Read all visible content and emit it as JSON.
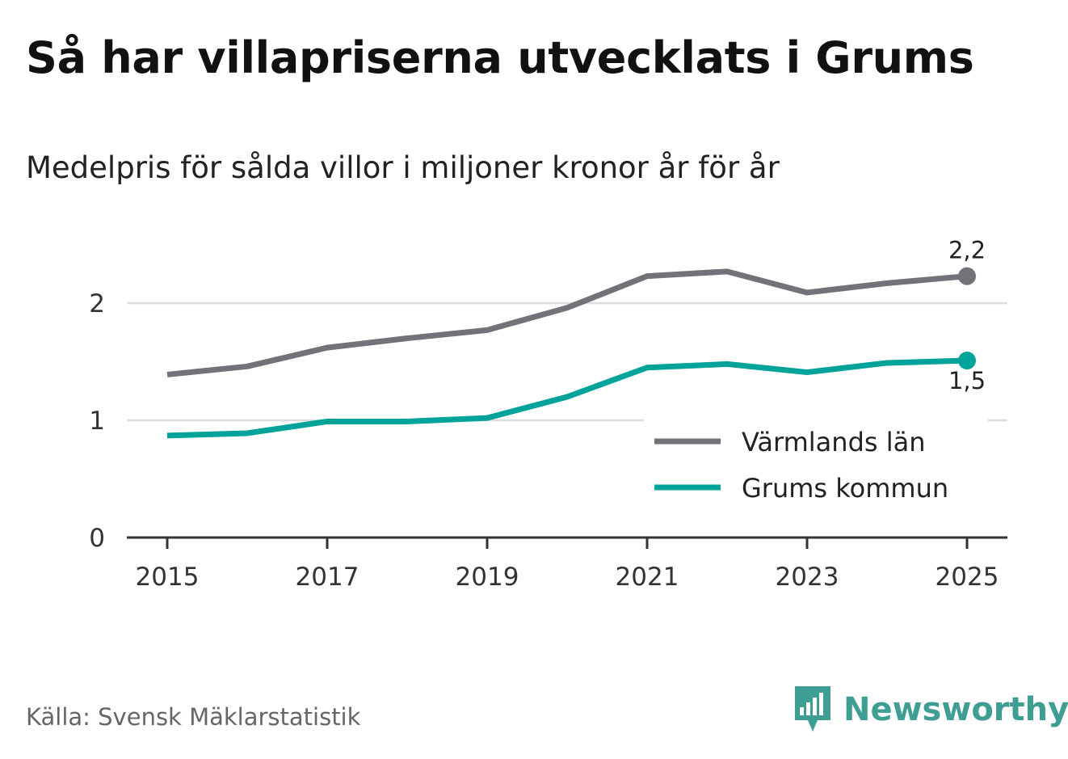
{
  "title": "Så har villapriserna utvecklats i Grums",
  "subtitle": "Medelpris för sålda villor i miljoner kronor år för år",
  "source": "Källa: Svensk Mäklarstatistik",
  "brand": "Newsworthy",
  "colors": {
    "varmland": "#737278",
    "grums": "#00a39a",
    "gridline": "#dddddd",
    "axis": "#333333",
    "brand": "#3f9e94"
  },
  "chart_data": {
    "type": "line",
    "title": "Så har villapriserna utvecklats i Grums",
    "subtitle": "Medelpris för sålda villor i miljoner kronor år för år",
    "xlabel": "",
    "ylabel": "",
    "x": [
      2015,
      2016,
      2017,
      2018,
      2019,
      2020,
      2021,
      2022,
      2023,
      2024,
      2025
    ],
    "x_ticks": [
      "2015",
      "2017",
      "2019",
      "2021",
      "2023",
      "2025"
    ],
    "y_ticks": [
      "0",
      "1",
      "2"
    ],
    "ylim": [
      0,
      2.5
    ],
    "grid": true,
    "legend_position": "lower-right",
    "series": [
      {
        "name": "Värmlands län",
        "key": "varmland",
        "values": [
          1.39,
          1.46,
          1.62,
          1.7,
          1.77,
          1.96,
          2.23,
          2.27,
          2.09,
          2.17,
          2.23
        ],
        "end_label": "2,2"
      },
      {
        "name": "Grums kommun",
        "key": "grums",
        "values": [
          0.87,
          0.89,
          0.99,
          0.99,
          1.02,
          1.2,
          1.45,
          1.48,
          1.41,
          1.49,
          1.51
        ],
        "end_label": "1,5"
      }
    ]
  }
}
